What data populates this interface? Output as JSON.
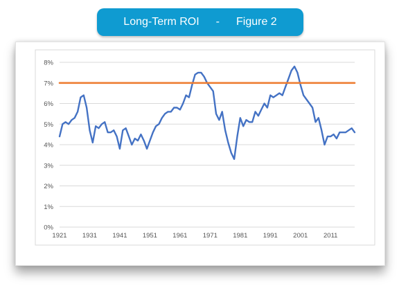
{
  "banner": {
    "title": "Long-Term ROI",
    "separator": "-",
    "figure": "Figure 2"
  },
  "colors": {
    "banner_bg": "#0f9bd1",
    "series": "#4472c4",
    "reference": "#ed7d31",
    "grid": "#d9d9d9"
  },
  "chart_data": {
    "type": "line",
    "title": "",
    "xlabel": "",
    "ylabel": "",
    "xlim": [
      1921,
      2019
    ],
    "ylim": [
      0,
      8
    ],
    "y_ticks": [
      "0%",
      "1%",
      "2%",
      "3%",
      "4%",
      "5%",
      "6%",
      "7%",
      "8%"
    ],
    "x_ticks": [
      "1921",
      "1931",
      "1941",
      "1951",
      "1961",
      "1971",
      "1981",
      "1991",
      "2001",
      "2011"
    ],
    "grid": "horizontal",
    "series": [
      {
        "color": "#4472c4",
        "x": [
          1921,
          1922,
          1923,
          1924,
          1925,
          1926,
          1927,
          1928,
          1929,
          1930,
          1931,
          1932,
          1933,
          1934,
          1935,
          1936,
          1937,
          1938,
          1939,
          1940,
          1941,
          1942,
          1943,
          1944,
          1945,
          1946,
          1947,
          1948,
          1949,
          1950,
          1951,
          1952,
          1953,
          1954,
          1955,
          1956,
          1957,
          1958,
          1959,
          1960,
          1961,
          1962,
          1963,
          1964,
          1965,
          1966,
          1967,
          1968,
          1969,
          1970,
          1971,
          1972,
          1973,
          1974,
          1975,
          1976,
          1977,
          1978,
          1979,
          1980,
          1981,
          1982,
          1983,
          1984,
          1985,
          1986,
          1987,
          1988,
          1989,
          1990,
          1991,
          1992,
          1993,
          1994,
          1995,
          1996,
          1997,
          1998,
          1999,
          2000,
          2001,
          2002,
          2003,
          2004,
          2005,
          2006,
          2007,
          2008,
          2009,
          2010,
          2011,
          2012,
          2013,
          2014,
          2015,
          2016,
          2017,
          2018,
          2019
        ],
        "y": [
          4.4,
          5.0,
          5.1,
          5.0,
          5.2,
          5.3,
          5.6,
          6.3,
          6.4,
          5.8,
          4.7,
          4.1,
          4.9,
          4.8,
          5.0,
          5.1,
          4.6,
          4.6,
          4.7,
          4.4,
          3.8,
          4.7,
          4.8,
          4.4,
          4.0,
          4.3,
          4.2,
          4.5,
          4.2,
          3.8,
          4.2,
          4.6,
          4.9,
          5.0,
          5.3,
          5.5,
          5.6,
          5.6,
          5.8,
          5.8,
          5.7,
          6.0,
          6.4,
          6.3,
          6.9,
          7.4,
          7.5,
          7.5,
          7.3,
          7.0,
          6.8,
          6.6,
          5.5,
          5.2,
          5.6,
          4.7,
          4.1,
          3.6,
          3.3,
          4.4,
          5.3,
          4.9,
          5.2,
          5.1,
          5.1,
          5.6,
          5.4,
          5.7,
          6.0,
          5.8,
          6.4,
          6.3,
          6.4,
          6.5,
          6.4,
          6.8,
          7.2,
          7.6,
          7.8,
          7.5,
          6.9,
          6.4,
          6.2,
          6.0,
          5.8,
          5.1,
          5.3,
          4.7,
          4.0,
          4.4,
          4.4,
          4.5,
          4.3,
          4.6,
          4.6,
          4.6,
          4.7,
          4.8,
          4.6
        ]
      },
      {
        "color": "#ed7d31",
        "x": [
          1921,
          2019
        ],
        "y": [
          7.0,
          7.0
        ]
      }
    ]
  }
}
